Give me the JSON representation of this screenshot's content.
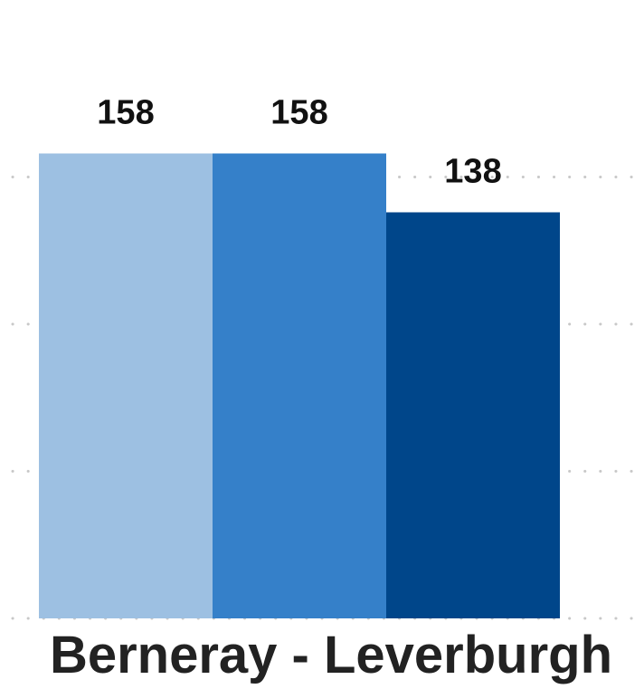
{
  "chart_data": {
    "type": "bar",
    "categories": [
      "Berneray - Leverburgh"
    ],
    "series": [
      {
        "values": [
          158
        ],
        "color": "#9dc0e2"
      },
      {
        "values": [
          158
        ],
        "color": "#3580c9"
      },
      {
        "values": [
          138
        ],
        "color": "#00468a"
      }
    ],
    "data_labels": [
      "158",
      "158",
      "138"
    ],
    "title": "",
    "xlabel": "",
    "ylabel": "",
    "ylim": [
      0,
      188
    ],
    "gridlines": [
      0,
      50,
      100,
      150
    ],
    "grid": true,
    "grid_style": "dotted",
    "grid_color": "#c8c8c8",
    "legend": "none",
    "tick_labels_y": "none"
  }
}
